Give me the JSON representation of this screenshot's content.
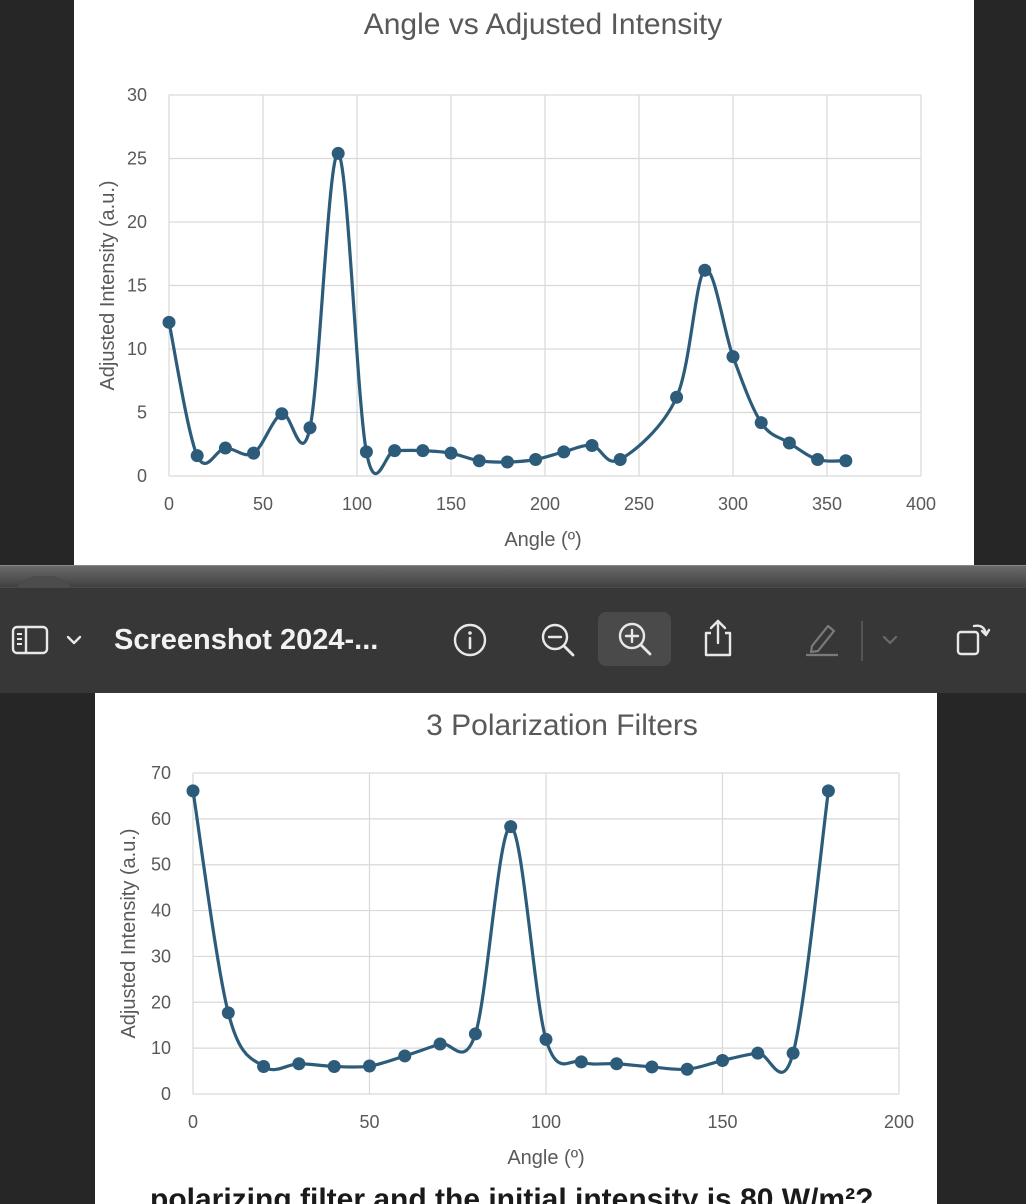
{
  "charts_top": {
    "title": "Angle vs Adjusted Intensity",
    "xlabel": "Angle (º)",
    "ylabel": "Adjusted Intensity (a.u.)",
    "xticks": [
      "0",
      "50",
      "100",
      "150",
      "200",
      "250",
      "300",
      "350",
      "400"
    ],
    "yticks": [
      "0",
      "5",
      "10",
      "15",
      "20",
      "25",
      "30"
    ]
  },
  "toolbar": {
    "sidebar_icon": "sidebar-toggle-icon",
    "chevron_icon": "chevron-down-icon",
    "title": "Screenshot 2024-...",
    "info_icon": "info-icon",
    "zoom_out_icon": "zoom-out-icon",
    "zoom_in_icon": "zoom-in-icon",
    "share_icon": "share-icon",
    "markup_icon": "pencil-icon",
    "rotate_icon": "rotate-icon",
    "accent": "#2c5c7a"
  },
  "charts_bottom": {
    "title": "3 Polarization Filters",
    "xlabel": "Angle (º)",
    "ylabel": "Adjusted Intensity (a.u.)",
    "xticks": [
      "0",
      "50",
      "100",
      "150",
      "200"
    ],
    "yticks": [
      "0",
      "10",
      "20",
      "30",
      "40",
      "50",
      "60",
      "70"
    ]
  },
  "doc_text_partial": "polarizing filter and the initial intensity is 80 W/m²?",
  "chart_data": [
    {
      "type": "line",
      "title": "Angle vs Adjusted Intensity",
      "xlabel": "Angle (º)",
      "ylabel": "Adjusted Intensity (a.u.)",
      "xlim": [
        0,
        400
      ],
      "ylim": [
        0,
        30
      ],
      "grid": true,
      "series": [
        {
          "x": [
            0,
            15,
            30,
            45,
            60,
            75,
            90,
            105,
            120,
            135,
            150,
            165,
            180,
            195,
            210,
            225,
            240,
            270,
            285,
            300,
            315,
            330,
            345,
            360
          ],
          "y": [
            12.1,
            1.6,
            2.2,
            1.8,
            4.9,
            3.8,
            25.4,
            1.9,
            2.0,
            2.0,
            1.8,
            1.2,
            1.1,
            1.3,
            1.9,
            2.4,
            1.3,
            6.2,
            16.2,
            9.4,
            4.2,
            2.6,
            1.3,
            1.2
          ]
        }
      ]
    },
    {
      "type": "line",
      "title": "3 Polarization Filters",
      "xlabel": "Angle (º)",
      "ylabel": "Adjusted Intensity (a.u.)",
      "xlim": [
        0,
        200
      ],
      "ylim": [
        0,
        70
      ],
      "grid": true,
      "series": [
        {
          "x": [
            0,
            10,
            20,
            30,
            40,
            50,
            60,
            70,
            80,
            90,
            100,
            110,
            120,
            130,
            140,
            150,
            160,
            170,
            180
          ],
          "y": [
            66.1,
            17.7,
            6.0,
            6.6,
            6.0,
            6.1,
            8.3,
            10.9,
            13.1,
            58.3,
            11.9,
            7.0,
            6.6,
            5.9,
            5.4,
            7.3,
            8.9,
            8.9,
            66.1
          ]
        }
      ]
    }
  ]
}
